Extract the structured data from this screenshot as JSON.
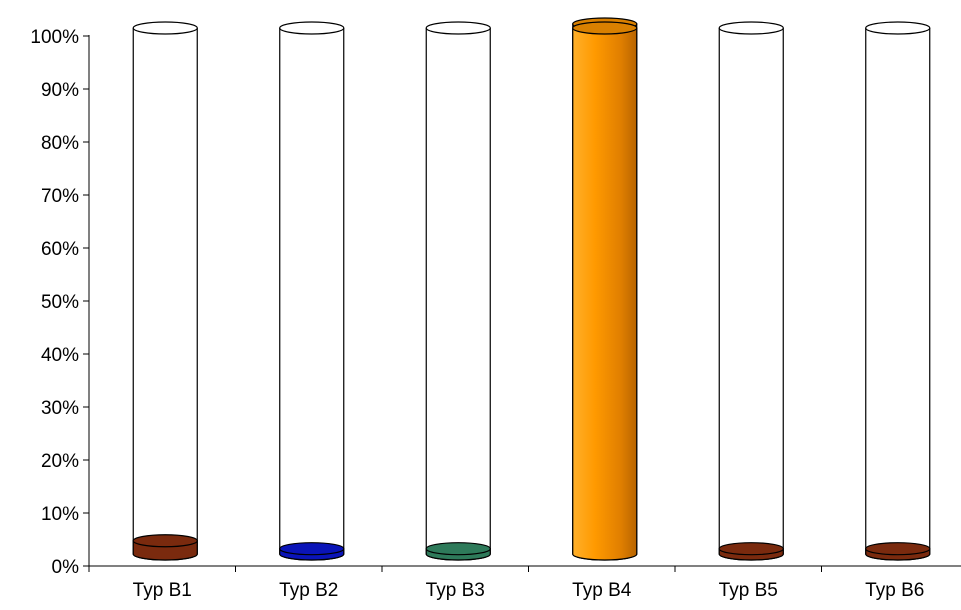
{
  "chart_data": {
    "type": "bar",
    "style": "3d-cylinder",
    "categories": [
      "Typ B1",
      "Typ B2",
      "Typ B3",
      "Typ B4",
      "Typ B5",
      "Typ B6"
    ],
    "series": [
      {
        "values": [
          2.5,
          1.0,
          1.0,
          100,
          1.0,
          1.0
        ],
        "colors": [
          "#7a2a0e",
          "#0a14b8",
          "#2e7a5a",
          "#ff9a00",
          "#7a2a0e",
          "#7a2a0e"
        ]
      }
    ],
    "title": "",
    "xlabel": "",
    "ylabel": "",
    "ylim": [
      0,
      100
    ],
    "yticks": [
      "0%",
      "10%",
      "20%",
      "30%",
      "40%",
      "50%",
      "60%",
      "70%",
      "80%",
      "90%",
      "100%"
    ],
    "grid": false,
    "legend": "none"
  }
}
